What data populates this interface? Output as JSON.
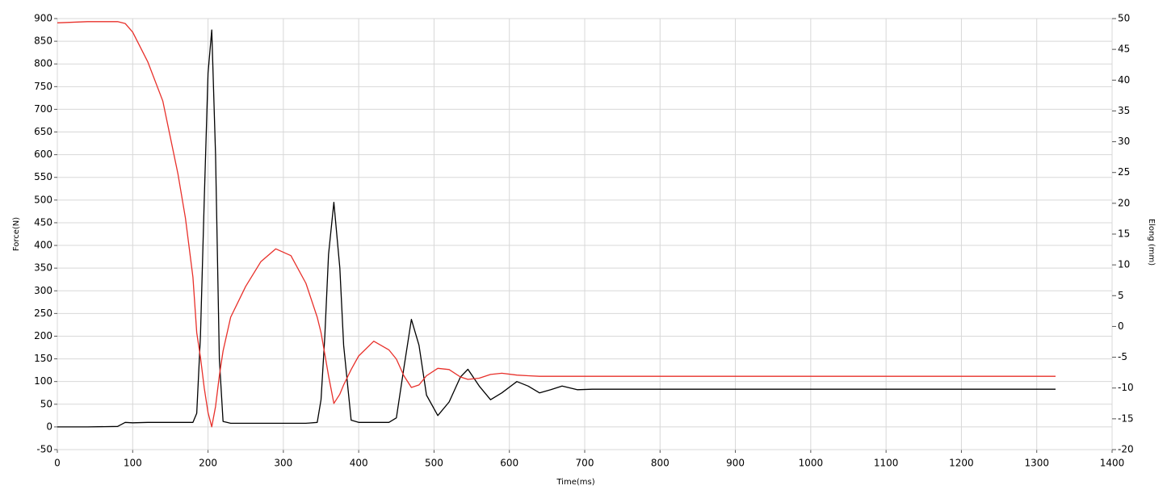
{
  "chart_data": {
    "type": "line",
    "xlabel": "Time(ms)",
    "ylabel": "Force(N)",
    "y2label": "Elong (mm)",
    "x": [
      0,
      40,
      80,
      90,
      100,
      120,
      140,
      160,
      170,
      180,
      185,
      190,
      195,
      200,
      205,
      210,
      215,
      220,
      230,
      250,
      270,
      290,
      310,
      330,
      345,
      350,
      355,
      360,
      367,
      375,
      380,
      390,
      400,
      420,
      440,
      450,
      460,
      470,
      480,
      490,
      505,
      520,
      535,
      545,
      560,
      575,
      590,
      610,
      625,
      640,
      655,
      670,
      690,
      710,
      800,
      900,
      1000,
      1100,
      1200,
      1325
    ],
    "series": [
      {
        "color": "#000000",
        "axis": "y",
        "values": [
          0,
          0,
          1,
          10,
          9,
          10,
          10,
          10,
          10,
          10,
          30,
          200,
          500,
          780,
          875,
          600,
          150,
          12,
          8,
          8,
          8,
          8,
          8,
          8,
          10,
          60,
          200,
          380,
          495,
          350,
          180,
          15,
          10,
          10,
          10,
          20,
          130,
          237,
          180,
          70,
          25,
          55,
          110,
          127,
          90,
          60,
          75,
          100,
          90,
          75,
          82,
          90,
          82,
          83,
          83,
          83,
          83,
          83,
          83,
          83
        ]
      },
      {
        "color": "#e8302a",
        "axis": "y2",
        "values": [
          49.3,
          49.5,
          49.5,
          49.2,
          47.8,
          43,
          36.6,
          24.8,
          17.6,
          8,
          -1,
          -5,
          -10,
          -14,
          -16.3,
          -13,
          -8,
          -4,
          1.5,
          6.5,
          10.5,
          12.6,
          11.5,
          7,
          1.5,
          -1,
          -4.5,
          -8,
          -12.5,
          -11,
          -9.5,
          -7,
          -4.8,
          -2.4,
          -3.8,
          -5.3,
          -8,
          -9.9,
          -9.5,
          -8,
          -6.8,
          -7,
          -8.2,
          -8.6,
          -8.4,
          -7.8,
          -7.6,
          -7.9,
          -8,
          -8.1,
          -8.1,
          -8.1,
          -8.1,
          -8.1,
          -8.1,
          -8.1,
          -8.1,
          -8.1,
          -8.1,
          -8.1
        ]
      }
    ],
    "xlim": [
      0,
      1400
    ],
    "xticks": [
      0,
      100,
      200,
      300,
      400,
      500,
      600,
      700,
      800,
      900,
      1000,
      1100,
      1200,
      1300,
      1400
    ],
    "ylim": [
      -50,
      900
    ],
    "yticks": [
      -50,
      0,
      50,
      100,
      150,
      200,
      250,
      300,
      350,
      400,
      450,
      500,
      550,
      600,
      650,
      700,
      750,
      800,
      850,
      900
    ],
    "y2lim": [
      -20,
      50
    ],
    "y2ticks": [
      -20,
      -15,
      -10,
      -5,
      0,
      5,
      10,
      15,
      20,
      25,
      30,
      35,
      40,
      45,
      50
    ],
    "grid": true
  }
}
